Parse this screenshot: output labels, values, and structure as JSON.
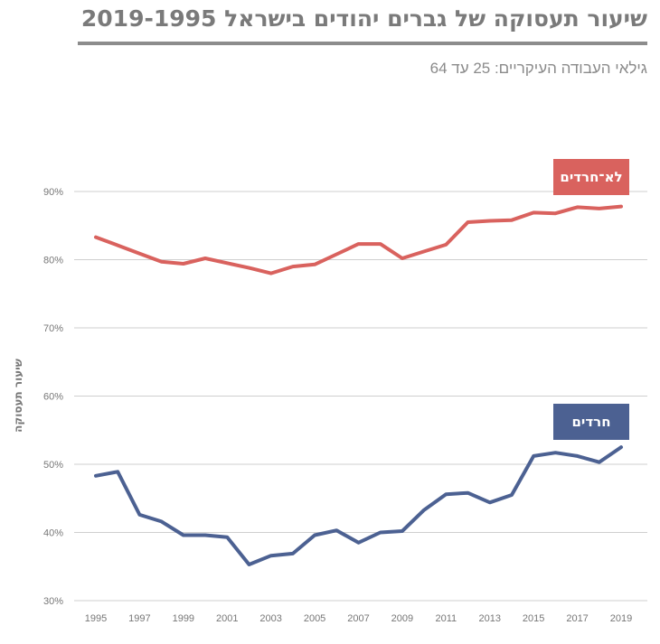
{
  "header": {
    "title": "שיעור תעסוקה של גברים יהודים בישראל 2019-1995",
    "subtitle": "גילאי העבודה העיקריים: 25 עד 64"
  },
  "chart_data": {
    "type": "line",
    "title": "שיעור תעסוקה של גברים יהודים בישראל 2019-1995",
    "subtitle": "גילאי העבודה העיקריים: 25 עד 64",
    "xlabel": "",
    "ylabel": "שיעור תעסוקה",
    "ylim": [
      30,
      90
    ],
    "yticks": [
      "30%",
      "40%",
      "50%",
      "60%",
      "70%",
      "80%",
      "90%"
    ],
    "xticks": [
      "1995",
      "1997",
      "1999",
      "2001",
      "2003",
      "2005",
      "2007",
      "2009",
      "2011",
      "2013",
      "2015",
      "2017",
      "2019"
    ],
    "grid": true,
    "x": [
      1995,
      1996,
      1997,
      1998,
      1999,
      2000,
      2001,
      2002,
      2003,
      2004,
      2005,
      2006,
      2007,
      2008,
      2009,
      2010,
      2011,
      2012,
      2013,
      2014,
      2015,
      2016,
      2017,
      2018,
      2019
    ],
    "series": [
      {
        "name": "לא־חרדים",
        "color": "#d9625e",
        "values": [
          83.3,
          82.1,
          80.9,
          79.7,
          79.4,
          80.2,
          79.5,
          78.8,
          78.0,
          79.0,
          79.3,
          80.8,
          82.3,
          82.3,
          80.2,
          81.2,
          82.2,
          85.5,
          85.7,
          85.8,
          86.9,
          86.8,
          87.7,
          87.5,
          87.8
        ]
      },
      {
        "name": "חרדים",
        "color": "#4c6192",
        "values": [
          48.3,
          48.9,
          42.6,
          41.6,
          39.6,
          39.6,
          39.3,
          35.3,
          36.6,
          36.9,
          39.6,
          40.3,
          38.5,
          40.0,
          40.2,
          43.3,
          45.6,
          45.8,
          44.4,
          45.5,
          51.2,
          51.7,
          51.2,
          50.3,
          52.5
        ]
      }
    ],
    "legend": "labels-on-lines"
  }
}
